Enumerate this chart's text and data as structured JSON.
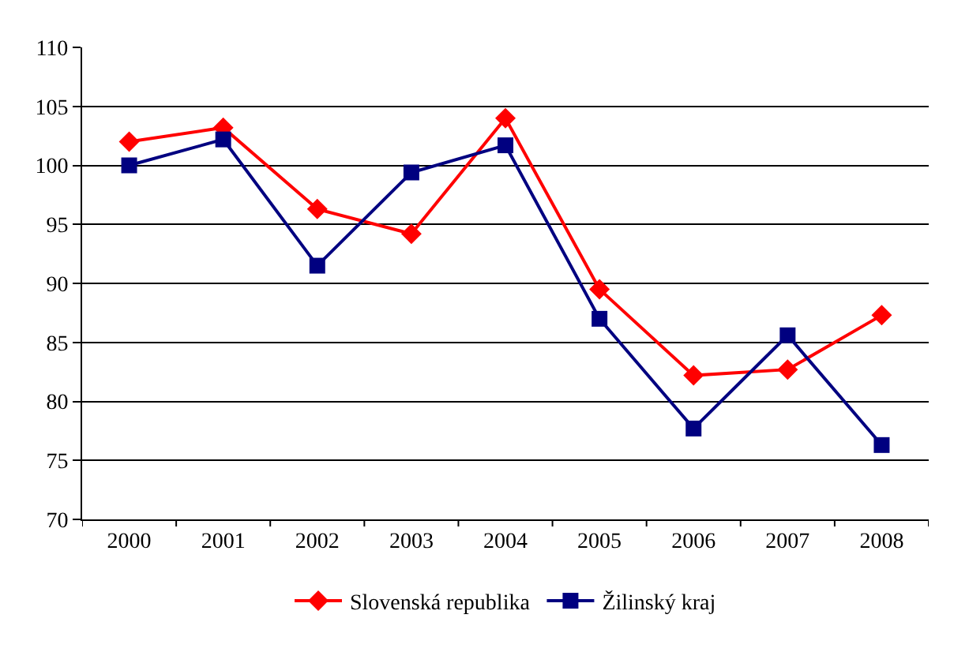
{
  "chart_data": {
    "type": "line",
    "categories": [
      "2000",
      "2001",
      "2002",
      "2003",
      "2004",
      "2005",
      "2006",
      "2007",
      "2008"
    ],
    "series": [
      {
        "name": "Slovenská republika",
        "color": "#ff0000",
        "marker": "diamond",
        "values": [
          102,
          103.2,
          96.3,
          94.2,
          104,
          89.5,
          82.2,
          82.7,
          87.3
        ]
      },
      {
        "name": "Žilinský kraj",
        "color": "#000080",
        "marker": "square",
        "values": [
          100,
          102.2,
          91.5,
          99.4,
          101.7,
          87,
          77.7,
          85.6,
          76.3
        ]
      }
    ],
    "ylim": [
      70,
      110
    ],
    "yticks": [
      70,
      75,
      80,
      85,
      90,
      95,
      100,
      105,
      110
    ],
    "grid": "y",
    "legend": "bottom",
    "line_style": "solid"
  }
}
